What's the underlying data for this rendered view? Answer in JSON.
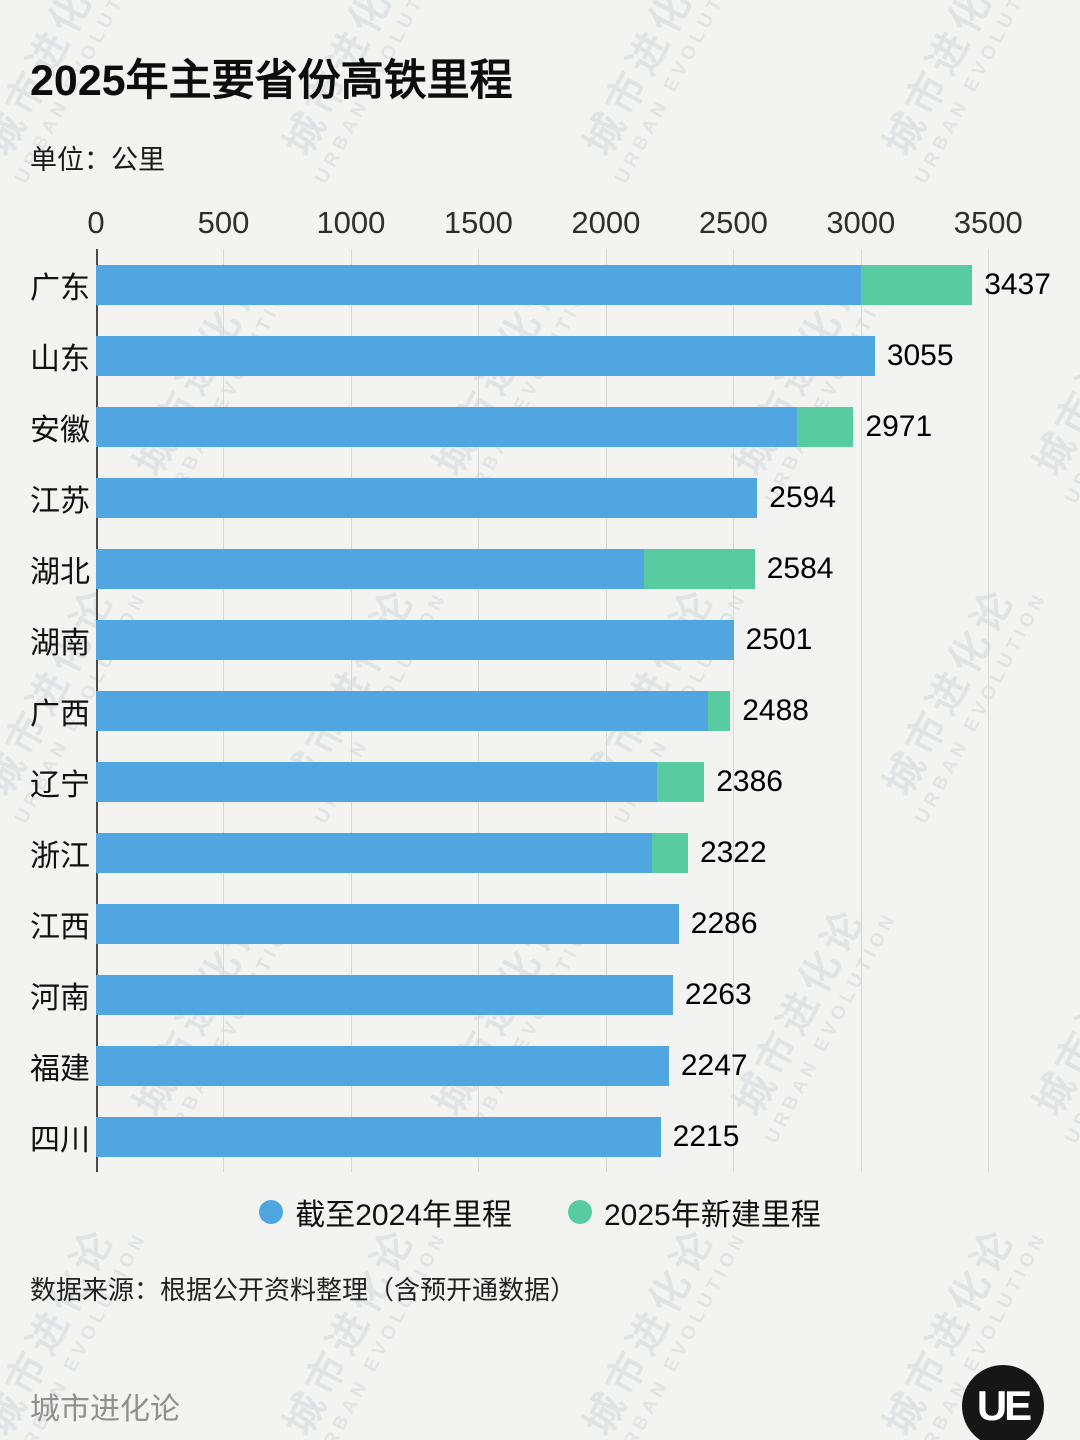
{
  "title": "2025年主要省份高铁里程",
  "unit_label": "单位：公里",
  "source": "数据来源：根据公开资料整理（含预开通数据）",
  "footer": {
    "brand": "城市进化论",
    "logo_text": "UE"
  },
  "watermark": {
    "cn": "城市进化论",
    "en": "URBAN EVOLUTION"
  },
  "colors": {
    "base": "#4fa6e0",
    "new": "#58cba0"
  },
  "legend": [
    {
      "label": "截至2024年里程",
      "color": "#4fa6e0"
    },
    {
      "label": "2025年新建里程",
      "color": "#58cba0"
    }
  ],
  "chart_data": {
    "type": "bar",
    "orientation": "horizontal",
    "title": "2025年主要省份高铁里程",
    "xlabel": "公里",
    "x_ticks": [
      0,
      500,
      1000,
      1500,
      2000,
      2500,
      3000,
      3500
    ],
    "xlim": [
      0,
      3750
    ],
    "grid": true,
    "legend_position": "bottom",
    "categories": [
      "广东",
      "山东",
      "安徽",
      "江苏",
      "湖北",
      "湖南",
      "广西",
      "辽宁",
      "浙江",
      "江西",
      "河南",
      "福建",
      "四川"
    ],
    "series": [
      {
        "name": "截至2024年里程",
        "color": "#4fa6e0",
        "values": [
          3000,
          3055,
          2750,
          2594,
          2150,
          2501,
          2400,
          2200,
          2180,
          2286,
          2263,
          2247,
          2215
        ]
      },
      {
        "name": "2025年新建里程",
        "color": "#58cba0",
        "values": [
          437,
          0,
          221,
          0,
          434,
          0,
          88,
          186,
          142,
          0,
          0,
          0,
          0
        ]
      }
    ],
    "totals": [
      3437,
      3055,
      2971,
      2594,
      2584,
      2501,
      2488,
      2386,
      2322,
      2286,
      2263,
      2247,
      2215
    ]
  }
}
